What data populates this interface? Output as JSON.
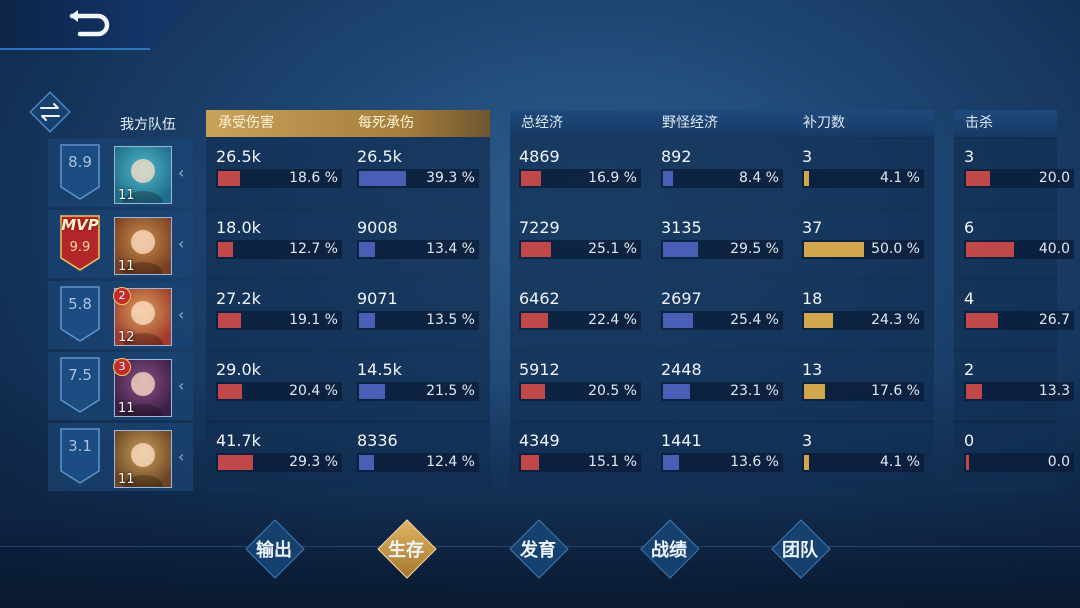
{
  "team_label": "我方队伍",
  "headers": {
    "survival": [
      "承受伤害",
      "每死承伤"
    ],
    "economy": [
      "总经济",
      "野怪经济",
      "补刀数"
    ],
    "combat": [
      "击杀"
    ]
  },
  "mvp_label": "MVP",
  "players": [
    {
      "score": "8.9",
      "level": "11",
      "rank": "",
      "mvp": false,
      "dmg_taken": "26.5k",
      "dmg_taken_pct": "18.6 %",
      "dmg_taken_f": 0.186,
      "per_death": "26.5k",
      "per_death_pct": "39.3 %",
      "per_death_f": 0.393,
      "gold": "4869",
      "gold_pct": "16.9 %",
      "gold_f": 0.169,
      "jungle": "892",
      "jungle_pct": "8.4 %",
      "jungle_f": 0.084,
      "cs": "3",
      "cs_pct": "4.1 %",
      "cs_f": 0.041,
      "kills": "3",
      "kills_pct": "20.0",
      "kills_f": 0.2
    },
    {
      "score": "9.9",
      "level": "11",
      "rank": "",
      "mvp": true,
      "dmg_taken": "18.0k",
      "dmg_taken_pct": "12.7 %",
      "dmg_taken_f": 0.127,
      "per_death": "9008",
      "per_death_pct": "13.4 %",
      "per_death_f": 0.134,
      "gold": "7229",
      "gold_pct": "25.1 %",
      "gold_f": 0.251,
      "jungle": "3135",
      "jungle_pct": "29.5 %",
      "jungle_f": 0.295,
      "cs": "37",
      "cs_pct": "50.0 %",
      "cs_f": 0.5,
      "kills": "6",
      "kills_pct": "40.0",
      "kills_f": 0.4
    },
    {
      "score": "5.8",
      "level": "12",
      "rank": "2",
      "mvp": false,
      "dmg_taken": "27.2k",
      "dmg_taken_pct": "19.1 %",
      "dmg_taken_f": 0.191,
      "per_death": "9071",
      "per_death_pct": "13.5 %",
      "per_death_f": 0.135,
      "gold": "6462",
      "gold_pct": "22.4 %",
      "gold_f": 0.224,
      "jungle": "2697",
      "jungle_pct": "25.4 %",
      "jungle_f": 0.254,
      "cs": "18",
      "cs_pct": "24.3 %",
      "cs_f": 0.243,
      "kills": "4",
      "kills_pct": "26.7",
      "kills_f": 0.267
    },
    {
      "score": "7.5",
      "level": "11",
      "rank": "3",
      "mvp": false,
      "dmg_taken": "29.0k",
      "dmg_taken_pct": "20.4 %",
      "dmg_taken_f": 0.204,
      "per_death": "14.5k",
      "per_death_pct": "21.5 %",
      "per_death_f": 0.215,
      "gold": "5912",
      "gold_pct": "20.5 %",
      "gold_f": 0.205,
      "jungle": "2448",
      "jungle_pct": "23.1 %",
      "jungle_f": 0.231,
      "cs": "13",
      "cs_pct": "17.6 %",
      "cs_f": 0.176,
      "kills": "2",
      "kills_pct": "13.3",
      "kills_f": 0.133
    },
    {
      "score": "3.1",
      "level": "11",
      "rank": "",
      "mvp": false,
      "dmg_taken": "41.7k",
      "dmg_taken_pct": "29.3 %",
      "dmg_taken_f": 0.293,
      "per_death": "8336",
      "per_death_pct": "12.4 %",
      "per_death_f": 0.124,
      "gold": "4349",
      "gold_pct": "15.1 %",
      "gold_f": 0.151,
      "jungle": "1441",
      "jungle_pct": "13.6 %",
      "jungle_f": 0.136,
      "cs": "3",
      "cs_pct": "4.1 %",
      "cs_f": 0.041,
      "kills": "0",
      "kills_pct": "0.0",
      "kills_f": 0.0
    }
  ],
  "nav": [
    {
      "label": "输出",
      "active": false
    },
    {
      "label": "生存",
      "active": true
    },
    {
      "label": "发育",
      "active": false
    },
    {
      "label": "战绩",
      "active": false
    },
    {
      "label": "团队",
      "active": false
    }
  ],
  "colors": {
    "damage": "#c04848",
    "blue": "#4b5eb6",
    "gold": "#d2a64c",
    "accent": "#e0b460"
  },
  "icons": {
    "back": "back-arrow-icon",
    "swap": "swap-arrows-icon",
    "expand": "chevron-left-icon"
  }
}
